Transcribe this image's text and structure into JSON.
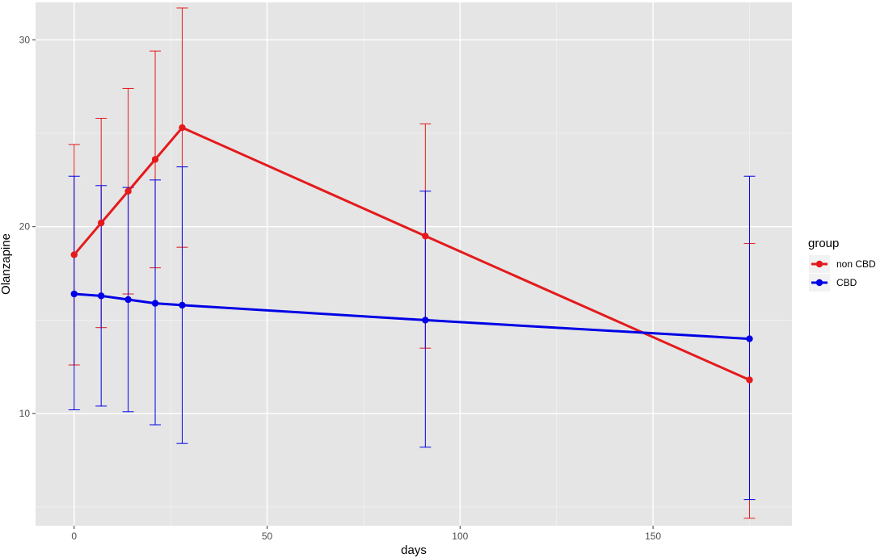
{
  "chart_data": {
    "type": "line",
    "xlabel": "days",
    "ylabel": "Olanzapine",
    "xlim": [
      -10,
      186
    ],
    "ylim": [
      4,
      32
    ],
    "x_ticks": [
      0,
      50,
      100,
      150
    ],
    "y_ticks": [
      10,
      20,
      30
    ],
    "grid": true,
    "legend": {
      "title": "group",
      "position": "right"
    },
    "series": [
      {
        "name": "non CBD",
        "color": "#e41a1c",
        "x": [
          0,
          7,
          14,
          21,
          28,
          91,
          175
        ],
        "y": [
          18.5,
          20.2,
          21.9,
          23.6,
          25.3,
          19.5,
          11.8
        ],
        "err_low": [
          12.6,
          14.6,
          16.4,
          17.8,
          18.9,
          13.5,
          4.4
        ],
        "err_high": [
          24.4,
          25.8,
          27.4,
          29.4,
          31.7,
          25.5,
          19.1
        ]
      },
      {
        "name": "CBD",
        "color": "#0000e6",
        "x": [
          0,
          7,
          14,
          21,
          28,
          91,
          175
        ],
        "y": [
          16.4,
          16.3,
          16.1,
          15.9,
          15.8,
          15.0,
          14.0
        ],
        "err_low": [
          10.2,
          10.4,
          10.1,
          9.4,
          8.4,
          8.2,
          5.4
        ],
        "err_high": [
          22.7,
          22.2,
          22.1,
          22.5,
          23.2,
          21.9,
          22.7
        ]
      }
    ]
  }
}
